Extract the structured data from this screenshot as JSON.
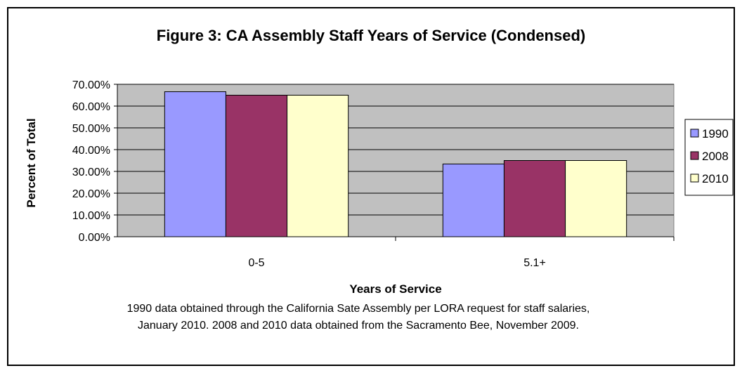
{
  "chart_data": {
    "type": "bar",
    "title": "Figure 3: CA Assembly Staff Years of Service (Condensed)",
    "xlabel": "Years of Service",
    "ylabel": "Percent of Total",
    "categories": [
      "0-5",
      "5.1+"
    ],
    "series": [
      {
        "name": "1990",
        "values": [
          66.6,
          33.4
        ],
        "color": "#9999ff"
      },
      {
        "name": "2008",
        "values": [
          65.0,
          35.0
        ],
        "color": "#993366"
      },
      {
        "name": "2010",
        "values": [
          65.0,
          35.0
        ],
        "color": "#ffffcc"
      }
    ],
    "ylim": [
      0,
      70
    ],
    "yticks": [
      "0.00%",
      "10.00%",
      "20.00%",
      "30.00%",
      "40.00%",
      "50.00%",
      "60.00%",
      "70.00%"
    ],
    "grid": true,
    "plot_background": "#c0c0c0",
    "legend_position": "right",
    "note": "1990 data obtained through the California Sate Assembly per LORA request for staff salaries, January 2010. 2008 and 2010 data obtained from the Sacramento Bee, November 2009."
  }
}
